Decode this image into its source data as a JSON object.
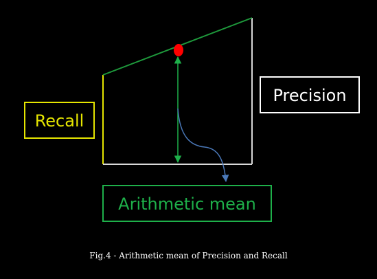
{
  "labels": {
    "recall": "Recall",
    "precision": "Precision",
    "arithmetic_mean": "Arithmetic mean"
  },
  "caption": "Fig.4 - Arithmetic mean of Precision and Recall",
  "colors": {
    "background": "#000000",
    "recall": "#e6e600",
    "precision": "#ffffff",
    "frame": "#d9d9d9",
    "slope_line": "#1e9a3c",
    "mean_arrow": "#1eb04a",
    "pointer_arrow": "#4a78b8",
    "mean_point": "#ff0000",
    "mean_box": "#1eb04a"
  }
}
